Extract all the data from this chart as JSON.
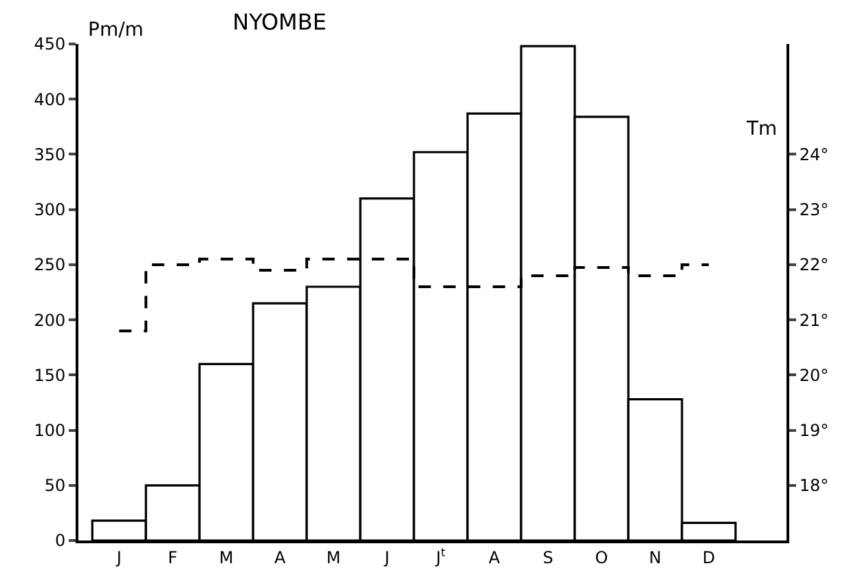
{
  "chart_data": {
    "type": "bar",
    "title": "NYOMBE",
    "ylabel": "Pm/m",
    "y2label": "Tm",
    "categories": [
      "J",
      "F",
      "M",
      "A",
      "M",
      "J",
      "J$^{t}$",
      "A",
      "S",
      "O",
      "N",
      "D"
    ],
    "series": [
      {
        "color": "#ffffff",
        "values": [
          18,
          50,
          160,
          215,
          230,
          310,
          352,
          387,
          448,
          384,
          128,
          16
        ]
      },
      {
        "type": "step",
        "axis": "y2",
        "color": "#000000",
        "line_style": "dashed",
        "values": [
          20.8,
          22.0,
          22.1,
          21.9,
          22.1,
          22.1,
          21.6,
          21.6,
          21.8,
          21.95,
          21.8,
          22.0
        ]
      }
    ],
    "ylim": [
      0,
      450
    ],
    "yticks": [
      0,
      50,
      100,
      150,
      200,
      250,
      300,
      350,
      400,
      450
    ],
    "y2lim": [
      17,
      26
    ],
    "y2ticks": [
      {
        "value": 18,
        "label": "18°"
      },
      {
        "value": 19,
        "label": "19°"
      },
      {
        "value": 20,
        "label": "20°"
      },
      {
        "value": 21,
        "label": "21°"
      },
      {
        "value": 22,
        "label": "22°"
      },
      {
        "value": 23,
        "label": "23°"
      },
      {
        "value": 24,
        "label": "24°"
      }
    ],
    "grid": false
  }
}
